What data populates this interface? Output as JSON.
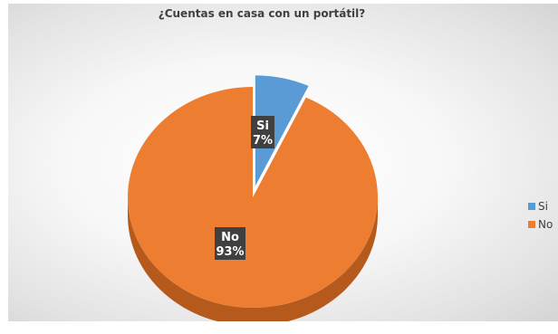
{
  "chart_data": {
    "type": "pie",
    "title": "¿Cuentas en casa con un portátil?",
    "categories": [
      "Si",
      "No"
    ],
    "values": [
      7,
      93
    ],
    "data_labels": [
      {
        "category": "Si",
        "percent": "7%"
      },
      {
        "category": "No",
        "percent": "93%"
      }
    ],
    "colors": [
      "#5b9bd5",
      "#ed7d31"
    ],
    "side_colors": [
      "#3d73a8",
      "#b55a1c"
    ],
    "three_d": true,
    "exploded_slice": "Si",
    "legend": {
      "position": "right",
      "entries": [
        "Si",
        "No"
      ]
    }
  }
}
